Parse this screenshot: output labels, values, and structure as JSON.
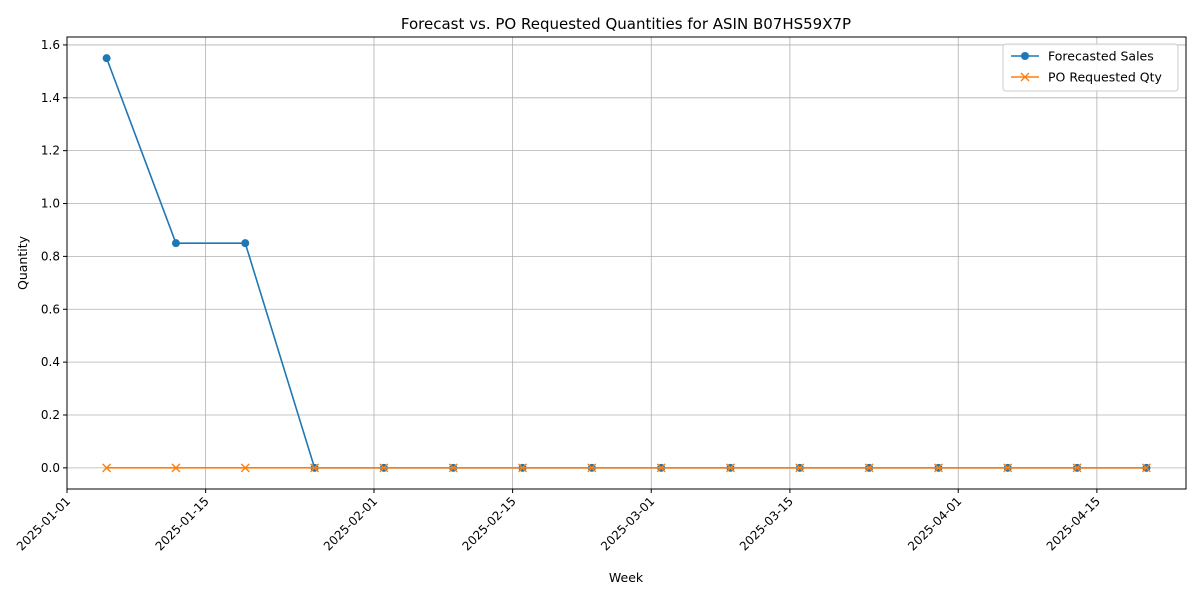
{
  "chart_data": {
    "type": "line",
    "title": "Forecast vs. PO Requested Quantities for ASIN B07HS59X7P",
    "xlabel": "Week",
    "ylabel": "Quantity",
    "x": [
      "2025-01-05",
      "2025-01-12",
      "2025-01-19",
      "2025-01-26",
      "2025-02-02",
      "2025-02-09",
      "2025-02-16",
      "2025-02-23",
      "2025-03-02",
      "2025-03-09",
      "2025-03-16",
      "2025-03-23",
      "2025-03-30",
      "2025-04-06",
      "2025-04-13",
      "2025-04-20"
    ],
    "series": [
      {
        "name": "Forecasted Sales",
        "color": "#1f77b4",
        "marker": "circle",
        "values": [
          1.55,
          0.85,
          0.85,
          0,
          0,
          0,
          0,
          0,
          0,
          0,
          0,
          0,
          0,
          0,
          0,
          0
        ]
      },
      {
        "name": "PO Requested Qty",
        "color": "#ff7f0e",
        "marker": "x",
        "values": [
          0,
          0,
          0,
          0,
          0,
          0,
          0,
          0,
          0,
          0,
          0,
          0,
          0,
          0,
          0,
          0
        ]
      }
    ],
    "xlim": [
      "2025-01-01",
      "2025-04-24"
    ],
    "ylim": [
      -0.08,
      1.63
    ],
    "yticks": [
      "0.0",
      "0.2",
      "0.4",
      "0.6",
      "0.8",
      "1.0",
      "1.2",
      "1.4",
      "1.6"
    ],
    "ytick_values": [
      0,
      0.2,
      0.4,
      0.6,
      0.8,
      1.0,
      1.2,
      1.4,
      1.6
    ],
    "xticks": [
      "2025-01-01",
      "2025-01-15",
      "2025-02-01",
      "2025-02-15",
      "2025-03-01",
      "2025-03-15",
      "2025-04-01",
      "2025-04-15"
    ],
    "grid": true,
    "legend_position": "top-right"
  }
}
